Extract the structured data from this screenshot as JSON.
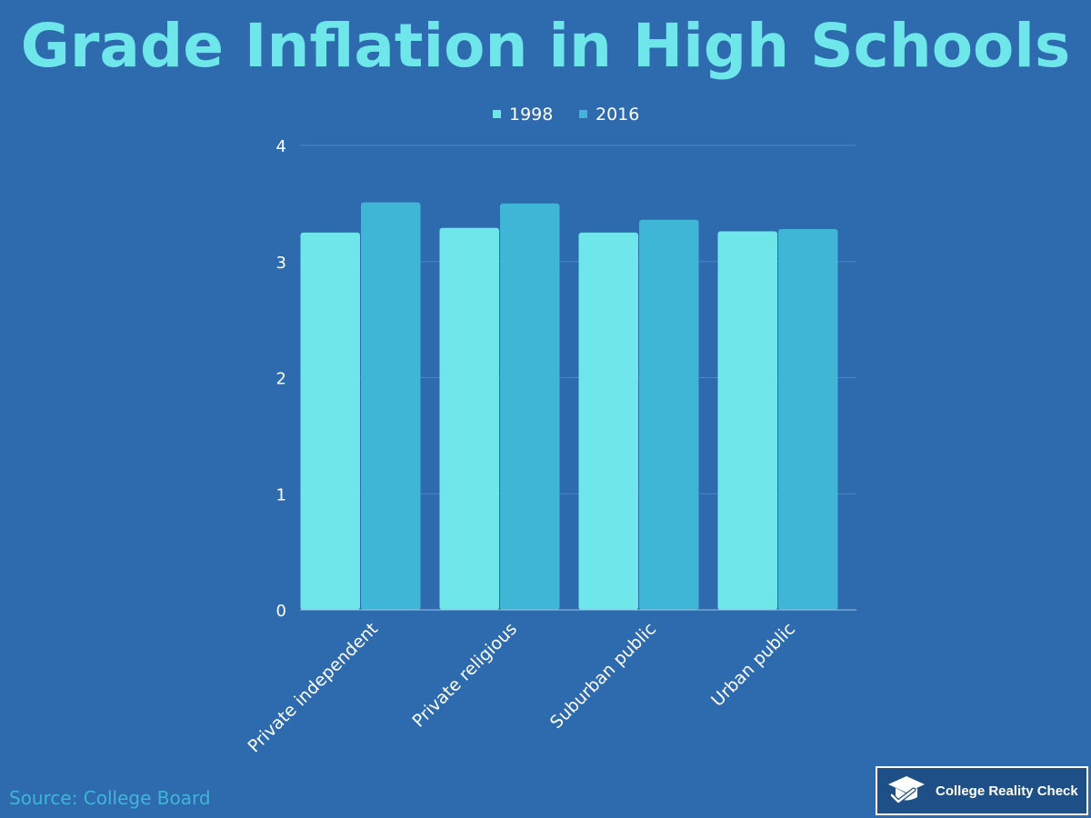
{
  "header": {
    "title": "Grade Inflation in High Schools"
  },
  "chart_data": {
    "type": "bar",
    "title": "Grade Inflation in High Schools",
    "categories": [
      "Private independent",
      "Private religious",
      "Suburban public",
      "Urban public"
    ],
    "series": [
      {
        "name": "1998",
        "values": [
          3.25,
          3.29,
          3.25,
          3.26
        ],
        "color": "#6ee6ea"
      },
      {
        "name": "2016",
        "values": [
          3.51,
          3.5,
          3.36,
          3.28
        ],
        "color": "#40b6d6"
      }
    ],
    "ylim": [
      0,
      4
    ],
    "yticks": [
      0,
      1,
      2,
      3,
      4
    ],
    "xlabel": "",
    "ylabel": "",
    "grid": true,
    "legend": "top-center"
  },
  "footer": {
    "source": "Source: College Board",
    "brand": "College Reality Check",
    "brand_icon": "graduation-cap-check-icon"
  },
  "colors": {
    "background": "#2d6aae",
    "title": "#6ee6ea",
    "source_text": "#41b5d6",
    "badge_bg": "#1e4f86"
  }
}
